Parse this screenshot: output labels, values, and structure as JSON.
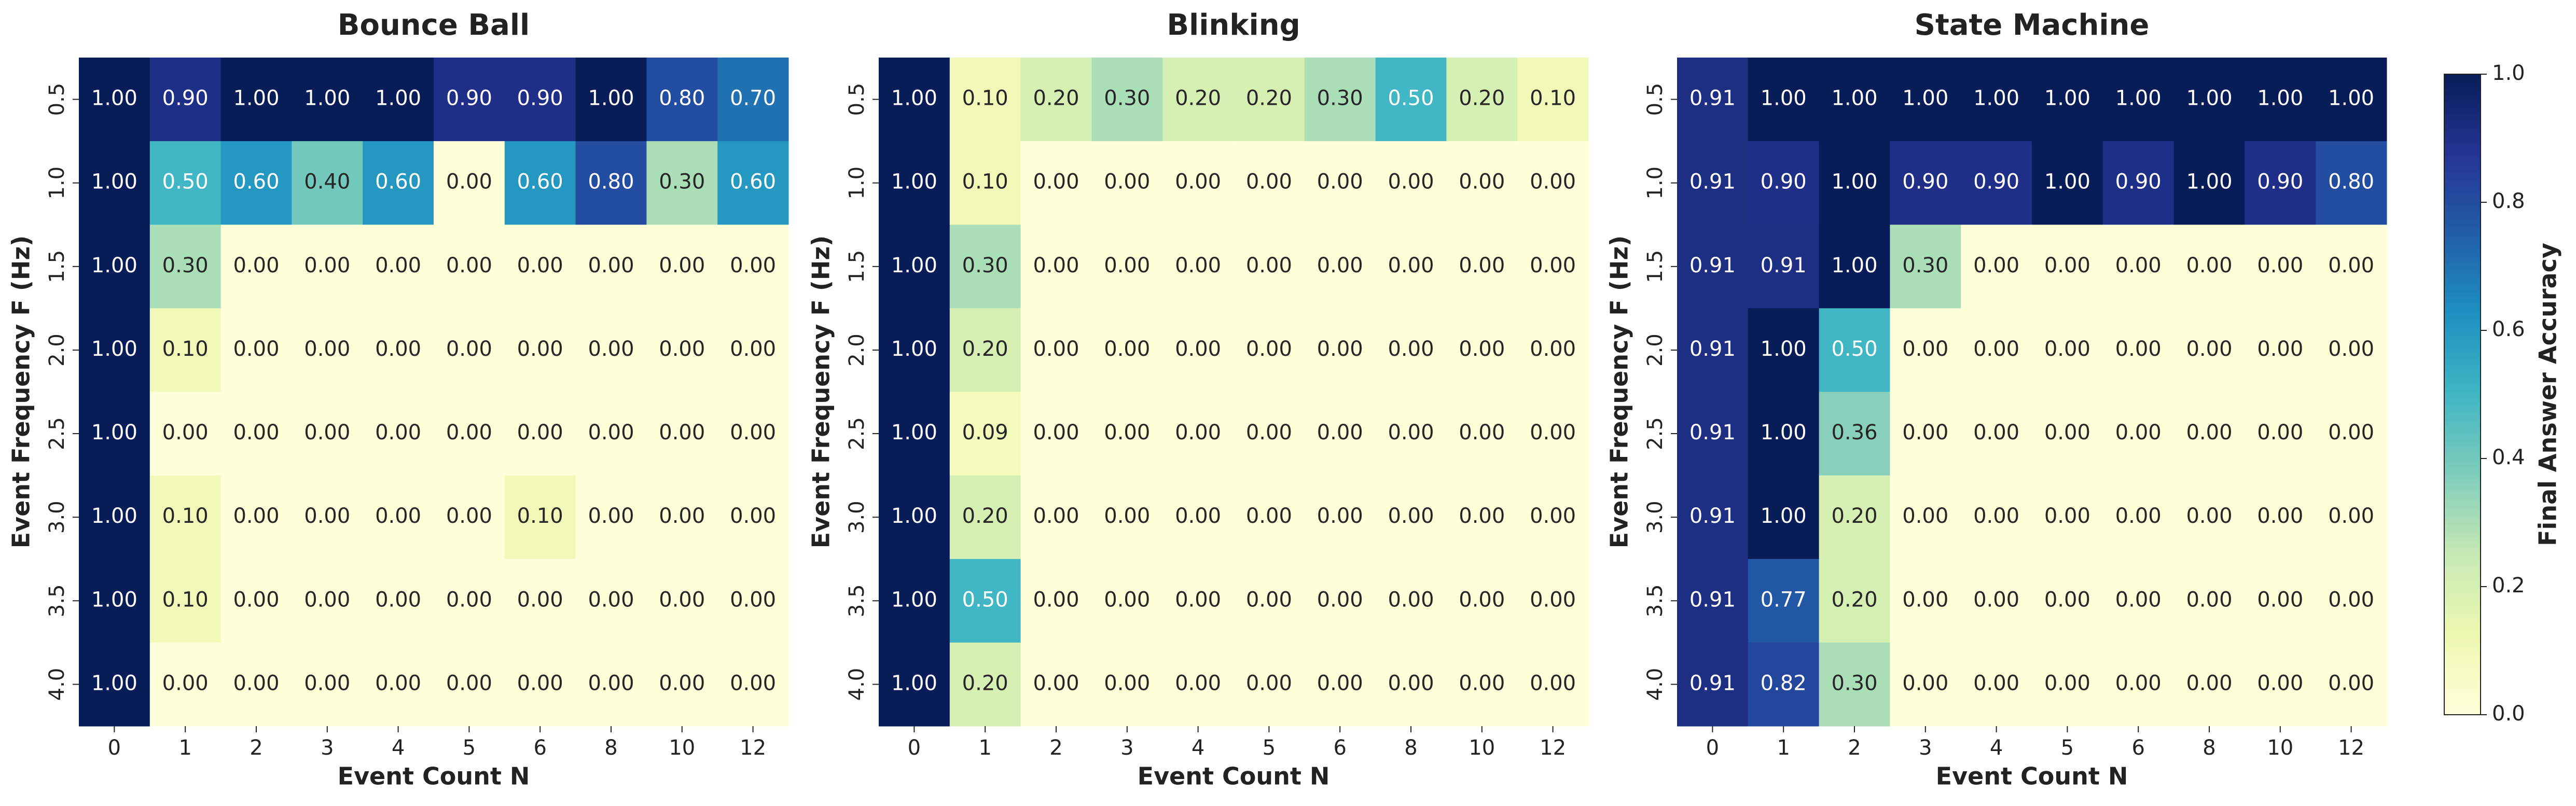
{
  "chart_data": [
    {
      "type": "heatmap",
      "title": "Bounce Ball",
      "x_label": "Event Count N",
      "y_label": "Event Frequency F (Hz)",
      "categories": [
        "0",
        "1",
        "2",
        "3",
        "4",
        "5",
        "6",
        "8",
        "10",
        "12"
      ],
      "y_categories": [
        "0.5",
        "1.0",
        "1.5",
        "2.0",
        "2.5",
        "3.0",
        "3.5",
        "4.0"
      ],
      "zlim": [
        0,
        1
      ],
      "values": [
        [
          1,
          0.9,
          1,
          1,
          1,
          0.9,
          0.9,
          1,
          0.8,
          0.7
        ],
        [
          1,
          0.5,
          0.6,
          0.4,
          0.6,
          0,
          0.6,
          0.8,
          0.3,
          0.6
        ],
        [
          1,
          0.3,
          0,
          0,
          0,
          0,
          0,
          0,
          0,
          0
        ],
        [
          1,
          0.1,
          0,
          0,
          0,
          0,
          0,
          0,
          0,
          0
        ],
        [
          1,
          0,
          0,
          0,
          0,
          0,
          0,
          0,
          0,
          0
        ],
        [
          1,
          0.1,
          0,
          0,
          0,
          0,
          0.1,
          0,
          0,
          0
        ],
        [
          1,
          0.1,
          0,
          0,
          0,
          0,
          0,
          0,
          0,
          0
        ],
        [
          1,
          0,
          0,
          0,
          0,
          0,
          0,
          0,
          0,
          0
        ]
      ],
      "value_labels": [
        [
          "1.00",
          "0.90",
          "1.00",
          "1.00",
          "1.00",
          "0.90",
          "0.90",
          "1.00",
          "0.80",
          "0.70"
        ],
        [
          "1.00",
          "0.50",
          "0.60",
          "0.40",
          "0.60",
          "0.00",
          "0.60",
          "0.80",
          "0.30",
          "0.60"
        ],
        [
          "1.00",
          "0.30",
          "0.00",
          "0.00",
          "0.00",
          "0.00",
          "0.00",
          "0.00",
          "0.00",
          "0.00"
        ],
        [
          "1.00",
          "0.10",
          "0.00",
          "0.00",
          "0.00",
          "0.00",
          "0.00",
          "0.00",
          "0.00",
          "0.00"
        ],
        [
          "1.00",
          "0.00",
          "0.00",
          "0.00",
          "0.00",
          "0.00",
          "0.00",
          "0.00",
          "0.00",
          "0.00"
        ],
        [
          "1.00",
          "0.10",
          "0.00",
          "0.00",
          "0.00",
          "0.00",
          "0.10",
          "0.00",
          "0.00",
          "0.00"
        ],
        [
          "1.00",
          "0.10",
          "0.00",
          "0.00",
          "0.00",
          "0.00",
          "0.00",
          "0.00",
          "0.00",
          "0.00"
        ],
        [
          "1.00",
          "0.00",
          "0.00",
          "0.00",
          "0.00",
          "0.00",
          "0.00",
          "0.00",
          "0.00",
          "0.00"
        ]
      ]
    },
    {
      "type": "heatmap",
      "title": "Blinking",
      "x_label": "Event Count N",
      "y_label": "Event Frequency F (Hz)",
      "categories": [
        "0",
        "1",
        "2",
        "3",
        "4",
        "5",
        "6",
        "8",
        "10",
        "12"
      ],
      "y_categories": [
        "0.5",
        "1.0",
        "1.5",
        "2.0",
        "2.5",
        "3.0",
        "3.5",
        "4.0"
      ],
      "zlim": [
        0,
        1
      ],
      "values": [
        [
          1,
          0.1,
          0.2,
          0.3,
          0.2,
          0.2,
          0.3,
          0.5,
          0.2,
          0.1
        ],
        [
          1,
          0.1,
          0,
          0,
          0,
          0,
          0,
          0,
          0,
          0
        ],
        [
          1,
          0.3,
          0,
          0,
          0,
          0,
          0,
          0,
          0,
          0
        ],
        [
          1,
          0.2,
          0,
          0,
          0,
          0,
          0,
          0,
          0,
          0
        ],
        [
          1,
          0.09,
          0,
          0,
          0,
          0,
          0,
          0,
          0,
          0
        ],
        [
          1,
          0.2,
          0,
          0,
          0,
          0,
          0,
          0,
          0,
          0
        ],
        [
          1,
          0.5,
          0,
          0,
          0,
          0,
          0,
          0,
          0,
          0
        ],
        [
          1,
          0.2,
          0,
          0,
          0,
          0,
          0,
          0,
          0,
          0
        ]
      ],
      "value_labels": [
        [
          "1.00",
          "0.10",
          "0.20",
          "0.30",
          "0.20",
          "0.20",
          "0.30",
          "0.50",
          "0.20",
          "0.10"
        ],
        [
          "1.00",
          "0.10",
          "0.00",
          "0.00",
          "0.00",
          "0.00",
          "0.00",
          "0.00",
          "0.00",
          "0.00"
        ],
        [
          "1.00",
          "0.30",
          "0.00",
          "0.00",
          "0.00",
          "0.00",
          "0.00",
          "0.00",
          "0.00",
          "0.00"
        ],
        [
          "1.00",
          "0.20",
          "0.00",
          "0.00",
          "0.00",
          "0.00",
          "0.00",
          "0.00",
          "0.00",
          "0.00"
        ],
        [
          "1.00",
          "0.09",
          "0.00",
          "0.00",
          "0.00",
          "0.00",
          "0.00",
          "0.00",
          "0.00",
          "0.00"
        ],
        [
          "1.00",
          "0.20",
          "0.00",
          "0.00",
          "0.00",
          "0.00",
          "0.00",
          "0.00",
          "0.00",
          "0.00"
        ],
        [
          "1.00",
          "0.50",
          "0.00",
          "0.00",
          "0.00",
          "0.00",
          "0.00",
          "0.00",
          "0.00",
          "0.00"
        ],
        [
          "1.00",
          "0.20",
          "0.00",
          "0.00",
          "0.00",
          "0.00",
          "0.00",
          "0.00",
          "0.00",
          "0.00"
        ]
      ]
    },
    {
      "type": "heatmap",
      "title": "State Machine",
      "x_label": "Event Count N",
      "y_label": "Event Frequency F (Hz)",
      "categories": [
        "0",
        "1",
        "2",
        "3",
        "4",
        "5",
        "6",
        "8",
        "10",
        "12"
      ],
      "y_categories": [
        "0.5",
        "1.0",
        "1.5",
        "2.0",
        "2.5",
        "3.0",
        "3.5",
        "4.0"
      ],
      "zlim": [
        0,
        1
      ],
      "values": [
        [
          0.91,
          1,
          1,
          1,
          1,
          1,
          1,
          1,
          1,
          1
        ],
        [
          0.91,
          0.9,
          1,
          0.9,
          0.9,
          1,
          0.9,
          1,
          0.9,
          0.8
        ],
        [
          0.91,
          0.91,
          1,
          0.3,
          0,
          0,
          0,
          0,
          0,
          0
        ],
        [
          0.91,
          1,
          0.5,
          0,
          0,
          0,
          0,
          0,
          0,
          0
        ],
        [
          0.91,
          1,
          0.36,
          0,
          0,
          0,
          0,
          0,
          0,
          0
        ],
        [
          0.91,
          1,
          0.2,
          0,
          0,
          0,
          0,
          0,
          0,
          0
        ],
        [
          0.91,
          0.77,
          0.2,
          0,
          0,
          0,
          0,
          0,
          0,
          0
        ],
        [
          0.91,
          0.82,
          0.3,
          0,
          0,
          0,
          0,
          0,
          0,
          0
        ]
      ],
      "value_labels": [
        [
          "0.91",
          "1.00",
          "1.00",
          "1.00",
          "1.00",
          "1.00",
          "1.00",
          "1.00",
          "1.00",
          "1.00"
        ],
        [
          "0.91",
          "0.90",
          "1.00",
          "0.90",
          "0.90",
          "1.00",
          "0.90",
          "1.00",
          "0.90",
          "0.80"
        ],
        [
          "0.91",
          "0.91",
          "1.00",
          "0.30",
          "0.00",
          "0.00",
          "0.00",
          "0.00",
          "0.00",
          "0.00"
        ],
        [
          "0.91",
          "1.00",
          "0.50",
          "0.00",
          "0.00",
          "0.00",
          "0.00",
          "0.00",
          "0.00",
          "0.00"
        ],
        [
          "0.91",
          "1.00",
          "0.36",
          "0.00",
          "0.00",
          "0.00",
          "0.00",
          "0.00",
          "0.00",
          "0.00"
        ],
        [
          "0.91",
          "1.00",
          "0.20",
          "0.00",
          "0.00",
          "0.00",
          "0.00",
          "0.00",
          "0.00",
          "0.00"
        ],
        [
          "0.91",
          "0.77",
          "0.20",
          "0.00",
          "0.00",
          "0.00",
          "0.00",
          "0.00",
          "0.00",
          "0.00"
        ],
        [
          "0.91",
          "0.82",
          "0.30",
          "0.00",
          "0.00",
          "0.00",
          "0.00",
          "0.00",
          "0.00",
          "0.00"
        ]
      ],
      "colorbar_label": "Final Answer Accuracy",
      "colormap": [
        "#ffffd9",
        "#edf8b1",
        "#c7e9b4",
        "#7fcdbb",
        "#41b6c4",
        "#1d91c0",
        "#225ea8",
        "#253494",
        "#081d58"
      ],
      "zticks": [
        {
          "value": 0,
          "label": "0.0"
        },
        {
          "value": 0.2,
          "label": "0.2"
        },
        {
          "value": 0.4,
          "label": "0.4"
        },
        {
          "value": 0.6,
          "label": "0.6"
        },
        {
          "value": 0.8,
          "label": "0.8"
        },
        {
          "value": 1,
          "label": "1.0"
        }
      ]
    }
  ]
}
